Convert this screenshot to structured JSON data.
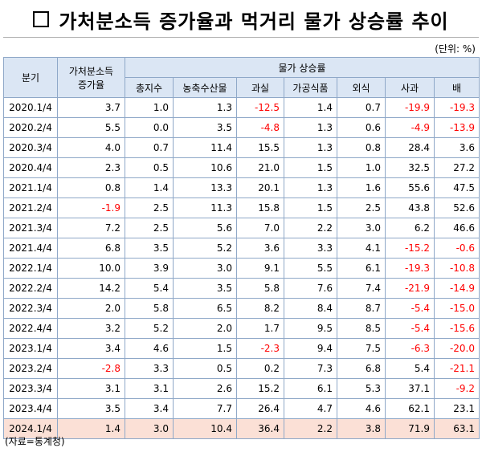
{
  "title": "가처분소득 증가율과 먹거리 물가 상승률 추이",
  "unit": "(단위: %)",
  "headers": {
    "period": "분기",
    "income_line1": "가처분소득",
    "income_line2": "증가율",
    "price_group": "물가 상승률",
    "columns": [
      "총지수",
      "농축수산물",
      "과실",
      "가공식품",
      "외식",
      "사과",
      "배"
    ]
  },
  "rows": [
    {
      "period": "2020.1/4",
      "values": [
        "3.7",
        "1.0",
        "1.3",
        "-12.5",
        "1.4",
        "0.7",
        "-19.9",
        "-19.3"
      ]
    },
    {
      "period": "2020.2/4",
      "values": [
        "5.5",
        "0.0",
        "3.5",
        "-4.8",
        "1.3",
        "0.6",
        "-4.9",
        "-13.9"
      ]
    },
    {
      "period": "2020.3/4",
      "values": [
        "4.0",
        "0.7",
        "11.4",
        "15.5",
        "1.3",
        "0.8",
        "28.4",
        "3.6"
      ]
    },
    {
      "period": "2020.4/4",
      "values": [
        "2.3",
        "0.5",
        "10.6",
        "21.0",
        "1.5",
        "1.0",
        "32.5",
        "27.2"
      ]
    },
    {
      "period": "2021.1/4",
      "values": [
        "0.8",
        "1.4",
        "13.3",
        "20.1",
        "1.3",
        "1.6",
        "55.6",
        "47.5"
      ]
    },
    {
      "period": "2021.2/4",
      "values": [
        "-1.9",
        "2.5",
        "11.3",
        "15.8",
        "1.5",
        "2.5",
        "43.8",
        "52.6"
      ]
    },
    {
      "period": "2021.3/4",
      "values": [
        "7.2",
        "2.5",
        "5.6",
        "7.0",
        "2.2",
        "3.0",
        "6.2",
        "46.6"
      ]
    },
    {
      "period": "2021.4/4",
      "values": [
        "6.8",
        "3.5",
        "5.2",
        "3.6",
        "3.3",
        "4.1",
        "-15.2",
        "-0.6"
      ]
    },
    {
      "period": "2022.1/4",
      "values": [
        "10.0",
        "3.9",
        "3.0",
        "9.1",
        "5.5",
        "6.1",
        "-19.3",
        "-10.8"
      ]
    },
    {
      "period": "2022.2/4",
      "values": [
        "14.2",
        "5.4",
        "3.5",
        "5.8",
        "7.6",
        "7.4",
        "-21.9",
        "-14.9"
      ]
    },
    {
      "period": "2022.3/4",
      "values": [
        "2.0",
        "5.8",
        "6.5",
        "8.2",
        "8.4",
        "8.7",
        "-5.4",
        "-15.0"
      ]
    },
    {
      "period": "2022.4/4",
      "values": [
        "3.2",
        "5.2",
        "2.0",
        "1.7",
        "9.5",
        "8.5",
        "-5.4",
        "-15.6"
      ]
    },
    {
      "period": "2023.1/4",
      "values": [
        "3.4",
        "4.6",
        "1.5",
        "-2.3",
        "9.4",
        "7.5",
        "-6.3",
        "-20.0"
      ]
    },
    {
      "period": "2023.2/4",
      "values": [
        "-2.8",
        "3.3",
        "0.5",
        "0.2",
        "7.3",
        "6.8",
        "5.4",
        "-21.1"
      ]
    },
    {
      "period": "2023.3/4",
      "values": [
        "3.1",
        "3.1",
        "2.6",
        "15.2",
        "6.1",
        "5.3",
        "37.1",
        "-9.2"
      ]
    },
    {
      "period": "2023.4/4",
      "values": [
        "3.5",
        "3.4",
        "7.7",
        "26.4",
        "4.7",
        "4.6",
        "62.1",
        "23.1"
      ]
    },
    {
      "period": "2024.1/4",
      "values": [
        "1.4",
        "3.0",
        "10.4",
        "36.4",
        "2.2",
        "3.8",
        "71.9",
        "63.1"
      ],
      "highlight": true
    }
  ],
  "source": "(자료=통계청)",
  "colors": {
    "header_bg": "#dbe6f4",
    "border": "#8fa8c8",
    "negative": "#ff0000",
    "highlight_row": "#fbe0d6"
  }
}
